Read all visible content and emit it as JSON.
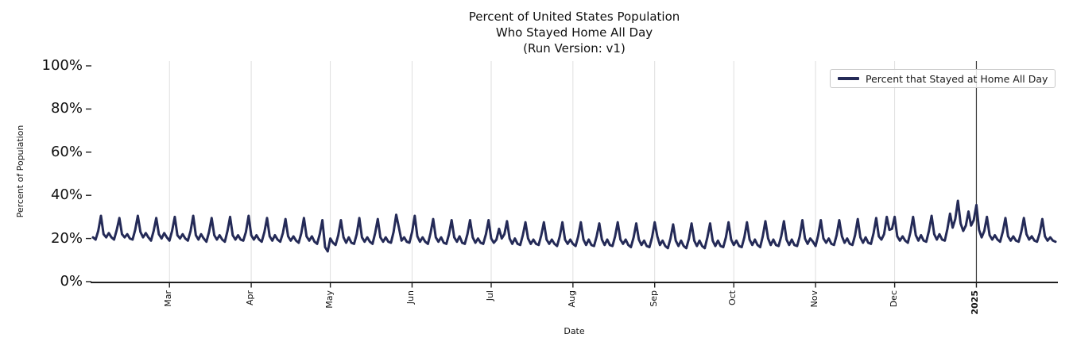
{
  "title": {
    "lines": [
      "Percent of United States Population",
      "Who Stayed Home All Day",
      "(Run Version: v1)"
    ]
  },
  "legend": {
    "label": "Percent that Stayed at Home All Day"
  },
  "chart_data": {
    "type": "line",
    "title": "Percent of United States Population\nWho Stayed Home All Day\n(Run Version: v1)",
    "xlabel": "Date",
    "ylabel": "Percent of Population",
    "ylim": [
      0,
      100
    ],
    "grid": "vertical-month-gridlines",
    "legend_position": "upper right",
    "grid_color": "#dedede",
    "year_line_color": "#3d3d3d",
    "axis_color": "#1f1f1f",
    "y_ticks": [
      {
        "value": 0,
        "label": "0%"
      },
      {
        "value": 20,
        "label": "20%"
      },
      {
        "value": 40,
        "label": "40%"
      },
      {
        "value": 60,
        "label": "60%"
      },
      {
        "value": 80,
        "label": "80%"
      },
      {
        "value": 100,
        "label": "100%"
      }
    ],
    "x_ticks": [
      {
        "label": "Mar",
        "date": "2024-03-01",
        "bold": false
      },
      {
        "label": "Apr",
        "date": "2024-04-01",
        "bold": false
      },
      {
        "label": "May",
        "date": "2024-05-01",
        "bold": false
      },
      {
        "label": "Jun",
        "date": "2024-06-01",
        "bold": false
      },
      {
        "label": "Jul",
        "date": "2024-07-01",
        "bold": false
      },
      {
        "label": "Aug",
        "date": "2024-08-01",
        "bold": false
      },
      {
        "label": "Sep",
        "date": "2024-09-01",
        "bold": false
      },
      {
        "label": "Oct",
        "date": "2024-10-01",
        "bold": false
      },
      {
        "label": "Nov",
        "date": "2024-11-01",
        "bold": false
      },
      {
        "label": "Dec",
        "date": "2024-12-01",
        "bold": false
      },
      {
        "label": "2025",
        "date": "2025-01-01",
        "bold": true
      }
    ],
    "annotations": {
      "vertical_line_date": "2025-01-01"
    },
    "series": [
      {
        "name": "Percent that Stayed at Home All Day",
        "color": "#242a57",
        "start_date": "2024-02-01",
        "end_date": "2025-01-31",
        "frequency": "daily",
        "unit": "percent",
        "values": [
          20.5,
          19.5,
          23.5,
          30.5,
          22,
          20.5,
          22.5,
          20.5,
          19.5,
          24,
          29.5,
          22,
          20.5,
          22,
          20,
          19.5,
          24,
          30.5,
          23,
          20.5,
          22.5,
          20.5,
          19,
          23.5,
          29.5,
          22,
          20,
          22.5,
          20.5,
          19,
          23.5,
          30,
          21.5,
          20,
          22,
          20,
          19,
          23.5,
          30.5,
          21.5,
          19.5,
          22,
          20,
          18.5,
          23,
          29.5,
          21.5,
          19.5,
          21.5,
          19.5,
          18.5,
          23.5,
          30,
          21.5,
          19.5,
          21.5,
          19.5,
          19,
          23,
          30.5,
          21.5,
          19.5,
          21.5,
          19.5,
          18.5,
          23,
          29.5,
          21,
          19,
          21.5,
          19.5,
          18.5,
          22.5,
          29,
          21,
          19,
          21,
          19,
          18,
          22.5,
          29.5,
          21,
          19,
          21,
          18.5,
          17.5,
          22,
          28.5,
          16,
          14,
          20,
          18,
          17,
          21.5,
          28.5,
          20.5,
          18,
          20.5,
          18,
          17.5,
          22,
          29.5,
          20.5,
          18.5,
          20.5,
          18.5,
          17.5,
          22.5,
          29,
          20.5,
          18.5,
          20.5,
          18.5,
          18,
          23,
          31,
          25,
          19,
          20.5,
          18.5,
          18,
          23,
          30.5,
          21,
          18.5,
          20.5,
          18.5,
          17.5,
          22.5,
          29,
          20.5,
          18.5,
          20.5,
          18,
          17.5,
          22,
          28.5,
          20.5,
          18.5,
          21,
          18,
          17.5,
          22,
          28.5,
          20.5,
          18,
          20,
          18,
          17.5,
          22,
          28.5,
          20,
          18,
          19.5,
          24.5,
          20,
          22,
          28,
          20,
          17.5,
          20,
          17.5,
          17,
          21.5,
          27.5,
          20,
          17.5,
          19.5,
          17.5,
          17,
          21.5,
          27.5,
          19.5,
          17.5,
          19.5,
          17.5,
          16.5,
          21,
          27.5,
          19.5,
          17.5,
          19.5,
          17.5,
          16.5,
          21,
          27.5,
          19.5,
          17,
          19.5,
          17,
          16.5,
          21,
          27,
          19.5,
          17,
          19.5,
          17,
          16.5,
          21,
          27.5,
          19.5,
          17.5,
          19.5,
          17,
          16,
          20.5,
          27,
          19.5,
          17,
          19,
          16.5,
          16,
          20.5,
          27.5,
          21,
          17,
          19,
          16.5,
          15.5,
          20,
          26.5,
          19,
          16.5,
          19,
          16.5,
          15.5,
          20,
          27,
          19,
          16.5,
          19,
          16.5,
          15.5,
          20.5,
          27,
          19,
          16.5,
          19,
          16.5,
          16,
          20.5,
          27.5,
          19.5,
          17,
          19,
          16.5,
          16,
          20.5,
          27.5,
          19.5,
          17,
          19.5,
          17,
          16,
          21,
          28,
          20,
          17,
          19.5,
          17,
          16.5,
          21,
          28,
          19.5,
          17,
          19.5,
          17,
          16.5,
          21,
          28.5,
          20,
          17.5,
          20,
          18.5,
          16.5,
          21.5,
          28.5,
          20,
          18,
          20,
          17.5,
          17,
          21.5,
          28.5,
          21,
          18,
          20,
          17.5,
          17,
          21.5,
          29,
          20.5,
          18,
          20.5,
          18,
          17.5,
          22.5,
          29.5,
          21,
          19.5,
          22,
          30,
          24,
          24.5,
          30,
          21,
          19,
          21,
          19,
          18,
          23,
          30,
          21.5,
          19,
          21.5,
          19,
          18.5,
          23.5,
          30.5,
          22,
          19.5,
          22,
          19.5,
          19,
          24.5,
          31.5,
          25,
          29,
          37.5,
          27,
          23.5,
          26,
          32.5,
          26,
          28.5,
          35.5,
          24,
          20.5,
          23.5,
          30,
          21.5,
          19.5,
          21.5,
          19.5,
          18.5,
          23,
          29.5,
          21,
          19,
          21,
          19,
          18.5,
          23,
          29.5,
          22,
          19.5,
          21,
          19,
          18.5,
          22.5,
          29,
          21,
          19,
          20.5,
          19,
          18.5
        ]
      }
    ]
  }
}
